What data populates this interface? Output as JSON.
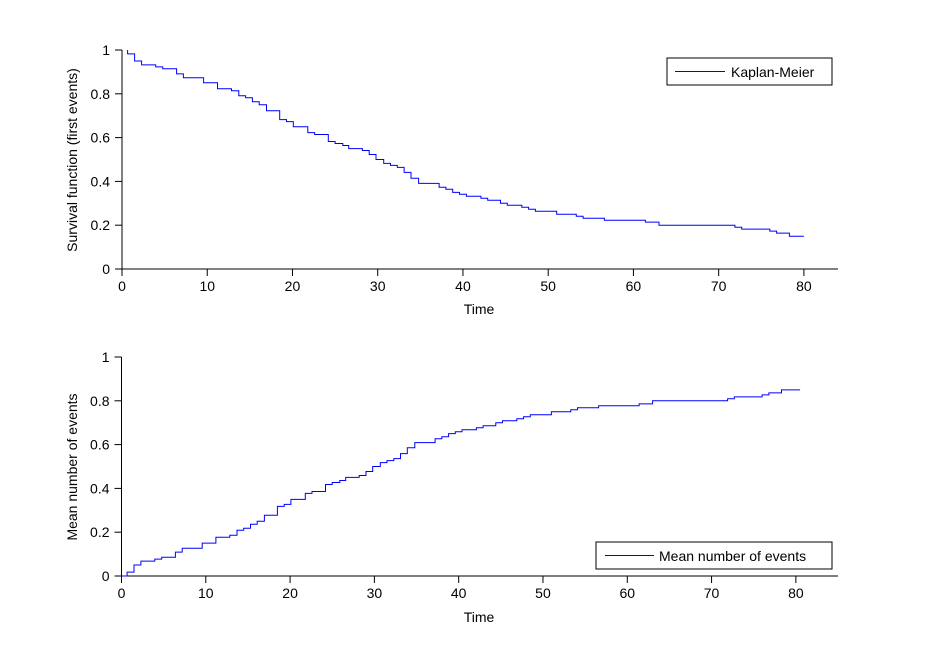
{
  "chart_data": [
    {
      "type": "line",
      "step": true,
      "xlabel": "Time",
      "ylabel": "Survival function (first events)",
      "xlim": [
        0,
        84
      ],
      "ylim": [
        0,
        1
      ],
      "xticks": [
        "0",
        "10",
        "20",
        "30",
        "40",
        "50",
        "60",
        "70",
        "80"
      ],
      "yticks": [
        "0",
        "0.2",
        "0.4",
        "0.6",
        "0.8",
        "1"
      ],
      "grid": false,
      "legend_position": "top-right",
      "series": [
        {
          "name": "Kaplan-Meier",
          "color": "#0000ff",
          "start": [
            0.66,
            1
          ],
          "end_x": 80,
          "x": [
            0.66,
            1.48,
            2.3,
            3.95,
            4.77,
            6.4,
            7.2,
            9.57,
            11.2,
            12.85,
            13.7,
            14.5,
            15.3,
            16.1,
            16.95,
            18.5,
            19.3,
            20.1,
            21.8,
            22.6,
            24.2,
            25.0,
            25.9,
            26.6,
            28.2,
            29.0,
            29.8,
            30.7,
            31.5,
            32.3,
            33.1,
            33.9,
            34.8,
            37.2,
            38.0,
            38.8,
            39.6,
            40.4,
            42.1,
            42.9,
            44.4,
            45.2,
            46.9,
            47.7,
            48.5,
            51.0,
            53.3,
            54.1,
            56.6,
            61.4,
            63.0,
            71.9,
            72.7,
            76.0,
            76.8,
            78.3
          ],
          "y": [
            0.982,
            0.95,
            0.932,
            0.923,
            0.914,
            0.891,
            0.873,
            0.85,
            0.823,
            0.814,
            0.791,
            0.782,
            0.764,
            0.75,
            0.723,
            0.682,
            0.673,
            0.65,
            0.623,
            0.614,
            0.582,
            0.573,
            0.564,
            0.55,
            0.541,
            0.523,
            0.5,
            0.482,
            0.473,
            0.464,
            0.441,
            0.414,
            0.391,
            0.373,
            0.364,
            0.35,
            0.341,
            0.332,
            0.323,
            0.314,
            0.3,
            0.291,
            0.282,
            0.273,
            0.264,
            0.25,
            0.241,
            0.232,
            0.223,
            0.214,
            0.2,
            0.191,
            0.182,
            0.173,
            0.164,
            0.15
          ]
        }
      ]
    },
    {
      "type": "line",
      "step": true,
      "xlabel": "Time",
      "ylabel": "Mean number of events",
      "xlim": [
        0,
        85
      ],
      "ylim": [
        0,
        1
      ],
      "xticks": [
        "0",
        "10",
        "20",
        "30",
        "40",
        "50",
        "60",
        "70",
        "80"
      ],
      "yticks": [
        "0",
        "0.2",
        "0.4",
        "0.6",
        "0.8",
        "1"
      ],
      "grid": false,
      "legend_position": "bottom-right",
      "series": [
        {
          "name": "Mean number of events",
          "color": "#0000ff",
          "start": [
            0,
            0
          ],
          "end_x": 80.5,
          "x": [
            0.66,
            1.48,
            2.3,
            3.95,
            4.77,
            6.4,
            7.2,
            9.57,
            11.2,
            12.85,
            13.7,
            14.5,
            15.3,
            16.1,
            16.95,
            18.5,
            19.3,
            20.1,
            21.8,
            22.6,
            24.2,
            25.0,
            25.9,
            26.6,
            28.2,
            29.0,
            29.8,
            30.7,
            31.5,
            32.3,
            33.1,
            33.9,
            34.8,
            37.2,
            38.0,
            38.8,
            39.6,
            40.4,
            42.1,
            42.9,
            44.4,
            45.2,
            46.9,
            47.7,
            48.5,
            51.0,
            53.3,
            54.1,
            56.6,
            61.4,
            63.0,
            71.9,
            72.7,
            76.0,
            76.8,
            78.3
          ],
          "y": [
            0.018,
            0.05,
            0.068,
            0.077,
            0.086,
            0.109,
            0.127,
            0.15,
            0.177,
            0.186,
            0.209,
            0.218,
            0.236,
            0.25,
            0.277,
            0.318,
            0.327,
            0.35,
            0.377,
            0.386,
            0.418,
            0.427,
            0.436,
            0.45,
            0.459,
            0.477,
            0.5,
            0.518,
            0.527,
            0.536,
            0.559,
            0.586,
            0.609,
            0.627,
            0.636,
            0.65,
            0.659,
            0.668,
            0.677,
            0.686,
            0.7,
            0.709,
            0.718,
            0.727,
            0.736,
            0.75,
            0.759,
            0.768,
            0.777,
            0.786,
            0.8,
            0.809,
            0.818,
            0.827,
            0.836,
            0.85
          ]
        }
      ]
    }
  ]
}
